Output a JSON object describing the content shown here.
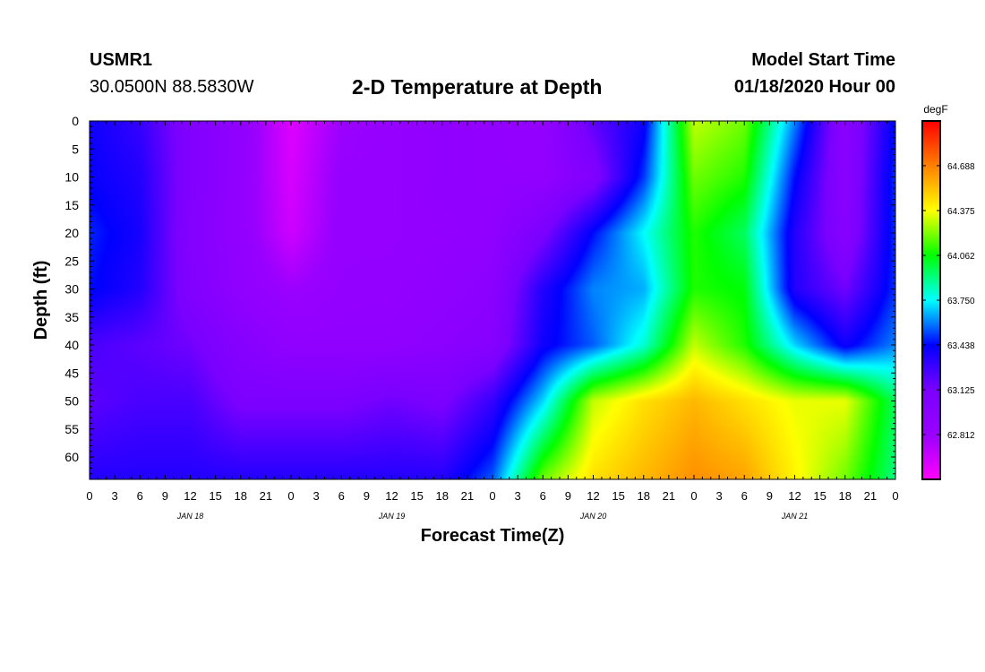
{
  "header": {
    "station": "USMR1",
    "coords": "30.0500N 88.5830W",
    "title": "2-D Temperature at Depth",
    "start_label": "Model Start Time",
    "start_value": "01/18/2020 Hour 00"
  },
  "chart_data": {
    "type": "heatmap",
    "title": "2-D Temperature at Depth",
    "xlabel": "Forecast Time(Z)",
    "ylabel": "Depth (ft)",
    "x_tick_labels": [
      "0",
      "3",
      "6",
      "9",
      "12",
      "15",
      "18",
      "21",
      "0",
      "3",
      "6",
      "9",
      "12",
      "15",
      "18",
      "21",
      "0",
      "3",
      "6",
      "9",
      "12",
      "15",
      "18",
      "21",
      "0",
      "3",
      "6",
      "9",
      "12",
      "15",
      "18",
      "21",
      "0"
    ],
    "x_range_hours": [
      0,
      96
    ],
    "day_labels": [
      {
        "label": "JAN 18",
        "hour": 12
      },
      {
        "label": "JAN 19",
        "hour": 36
      },
      {
        "label": "JAN 20",
        "hour": 60
      },
      {
        "label": "JAN 21",
        "hour": 84
      }
    ],
    "y_ticks": [
      0,
      5,
      10,
      15,
      20,
      25,
      30,
      35,
      40,
      45,
      50,
      55,
      60
    ],
    "y_range": [
      0,
      64
    ],
    "y_inverted": true,
    "colorbar": {
      "unit": "degF",
      "range": [
        62.5,
        65.0
      ],
      "tick_labels": [
        "64.688",
        "64.375",
        "64.062",
        "63.750",
        "63.438",
        "63.125",
        "62.812"
      ],
      "tick_values": [
        64.688,
        64.375,
        64.062,
        63.75,
        63.438,
        63.125,
        62.812
      ],
      "colors": [
        "#ff00ff",
        "#9900ff",
        "#7a00ff",
        "#0000ff",
        "#00ffff",
        "#00ff00",
        "#ffff00",
        "#ff8000",
        "#ff0000"
      ]
    },
    "grid_hours": [
      0,
      6,
      12,
      18,
      24,
      30,
      36,
      42,
      48,
      54,
      60,
      66,
      72,
      78,
      84,
      90,
      96
    ],
    "grid_depths": [
      0,
      10,
      20,
      30,
      40,
      50,
      64
    ],
    "values": [
      [
        63.4,
        63.3,
        63.05,
        62.9,
        62.6,
        62.8,
        62.85,
        62.9,
        62.88,
        62.86,
        63.2,
        63.4,
        64.3,
        64.2,
        63.6,
        62.95,
        63.45
      ],
      [
        63.42,
        63.35,
        63.05,
        62.88,
        62.62,
        62.84,
        62.85,
        62.9,
        62.88,
        62.88,
        63.05,
        63.5,
        64.2,
        64.1,
        63.45,
        62.95,
        63.5
      ],
      [
        63.48,
        63.38,
        63.02,
        62.88,
        62.65,
        62.85,
        62.85,
        62.88,
        62.9,
        63.1,
        63.45,
        63.75,
        64.1,
        63.95,
        63.35,
        62.98,
        63.5
      ],
      [
        63.45,
        63.35,
        63.05,
        62.9,
        62.8,
        62.86,
        62.87,
        62.9,
        62.95,
        63.35,
        63.6,
        63.65,
        64.1,
        64.05,
        63.35,
        63.15,
        63.5
      ],
      [
        63.25,
        63.2,
        63.15,
        63.0,
        62.9,
        62.9,
        62.9,
        62.95,
        63.0,
        63.4,
        63.55,
        63.8,
        64.3,
        64.1,
        63.7,
        63.4,
        63.6
      ],
      [
        63.2,
        63.25,
        63.25,
        63.1,
        63.1,
        63.1,
        63.15,
        63.1,
        63.3,
        63.7,
        64.3,
        64.45,
        64.55,
        64.45,
        64.35,
        64.35,
        63.95
      ],
      [
        63.35,
        63.35,
        63.35,
        63.35,
        63.35,
        63.35,
        63.35,
        63.35,
        63.55,
        64.2,
        64.45,
        64.55,
        64.65,
        64.6,
        64.4,
        64.2,
        63.9
      ]
    ]
  }
}
